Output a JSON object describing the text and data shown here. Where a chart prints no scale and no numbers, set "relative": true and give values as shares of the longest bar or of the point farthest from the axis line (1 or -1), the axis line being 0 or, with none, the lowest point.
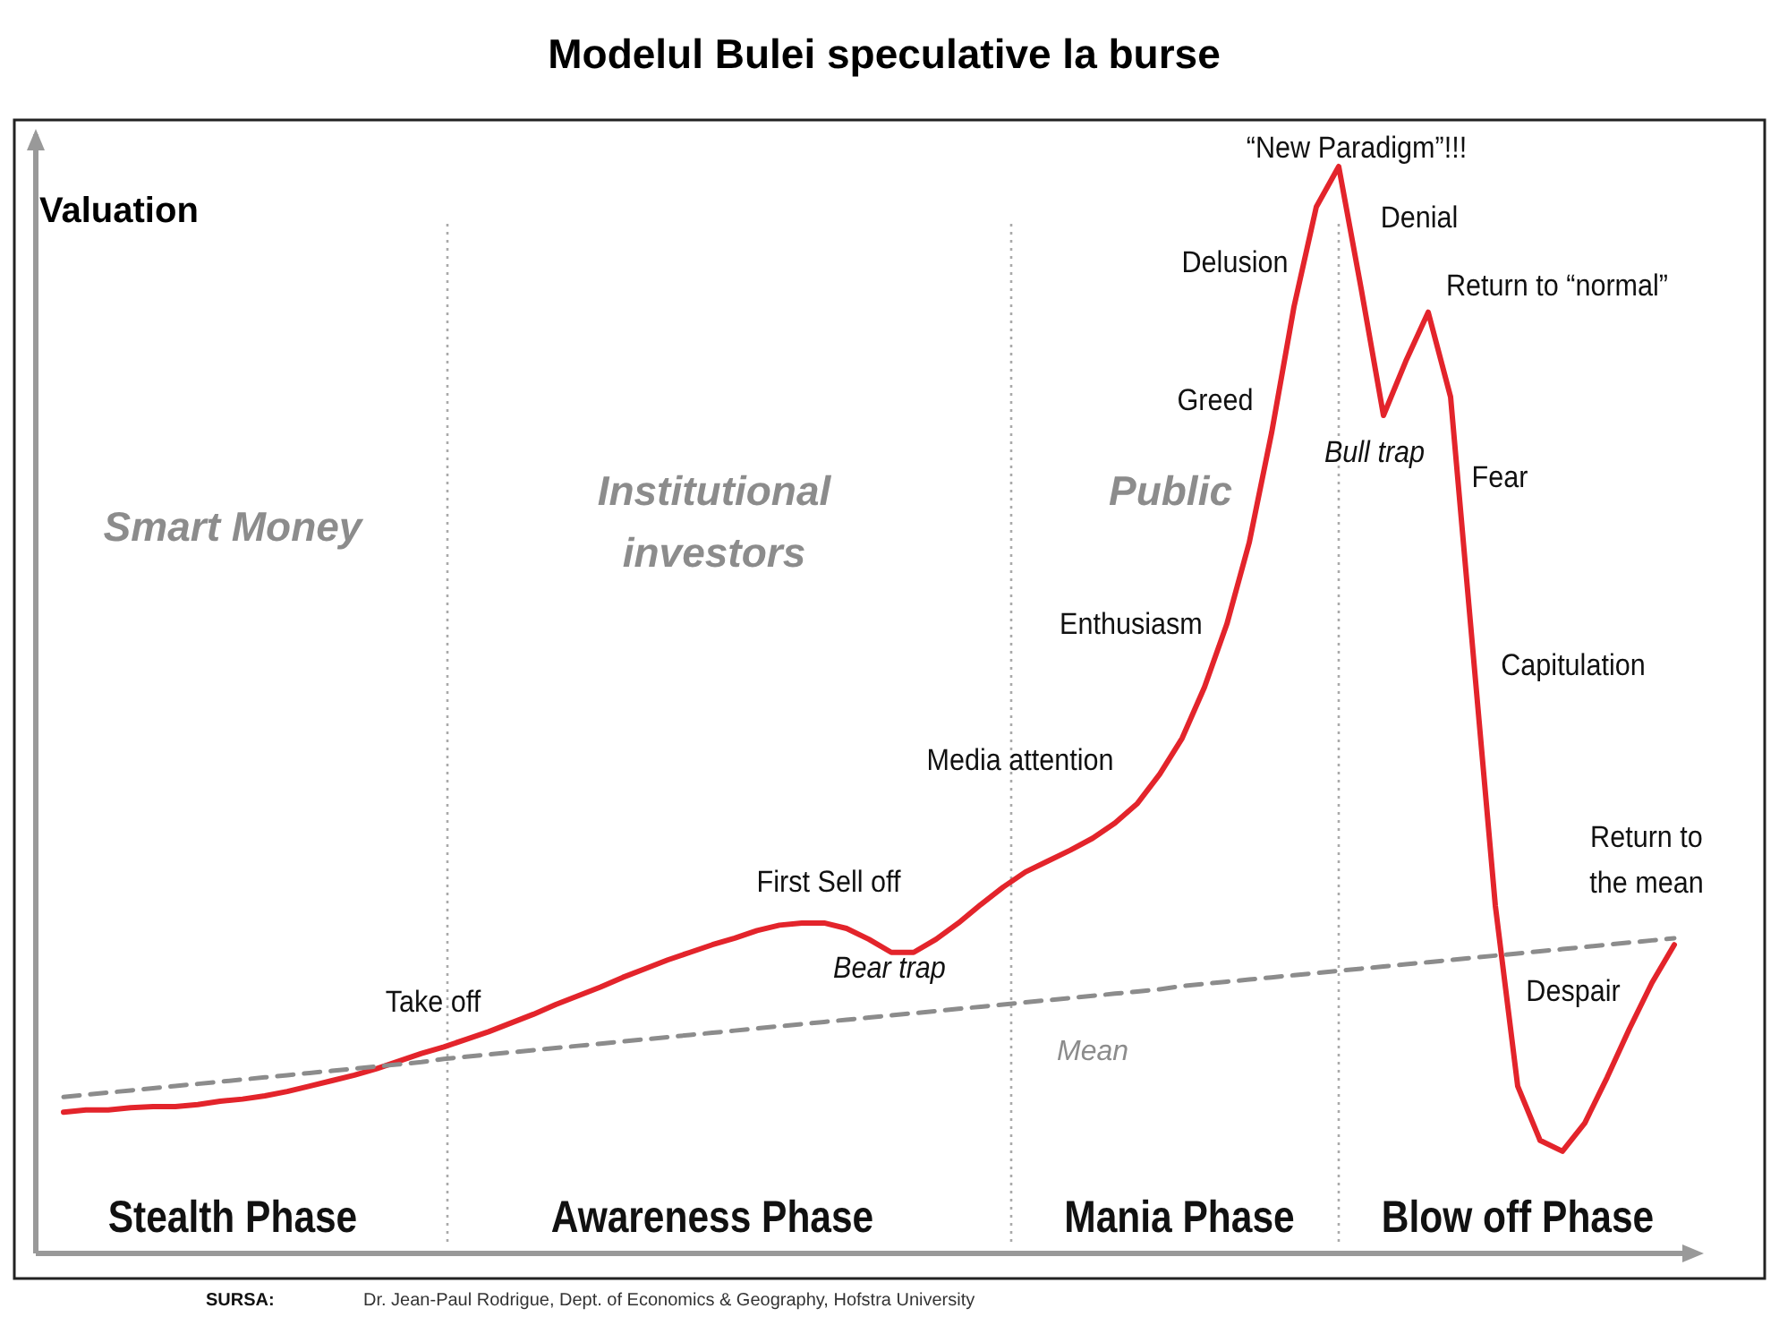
{
  "chart_data": {
    "type": "line",
    "title": "Modelul Bulei speculative la burse",
    "ylabel": "Valuation",
    "relative": true,
    "categories": [
      null,
      null,
      null,
      null,
      null,
      null,
      null,
      null,
      null,
      null,
      null,
      null,
      null,
      null,
      null,
      null,
      null,
      null,
      null,
      null,
      null,
      null,
      null,
      null,
      null,
      null,
      null,
      null,
      null,
      null,
      null,
      null,
      null,
      null,
      null,
      null,
      null,
      null,
      null,
      null,
      null,
      null,
      null,
      null,
      null,
      null,
      null,
      null,
      null,
      null,
      null,
      null,
      null,
      null,
      null,
      null,
      null,
      null,
      null,
      null,
      null,
      null,
      null,
      null,
      null,
      null,
      null,
      null,
      null,
      null,
      null,
      null,
      null
    ],
    "series": [
      {
        "color": "#e3242b",
        "line_style": "solid",
        "values": [
          0.13,
          0.132,
          0.132,
          0.134,
          0.135,
          0.135,
          0.137,
          0.14,
          0.142,
          0.145,
          0.149,
          0.154,
          0.159,
          0.164,
          0.17,
          0.177,
          0.184,
          0.19,
          0.197,
          0.204,
          0.212,
          0.22,
          0.229,
          0.237,
          0.245,
          0.254,
          0.262,
          0.27,
          0.277,
          0.284,
          0.29,
          0.297,
          0.302,
          0.304,
          0.304,
          0.299,
          0.289,
          0.277,
          0.277,
          0.289,
          0.304,
          0.321,
          0.337,
          0.351,
          0.361,
          0.371,
          0.382,
          0.396,
          0.414,
          0.441,
          0.474,
          0.521,
          0.579,
          0.654,
          0.755,
          0.871,
          0.963,
          1,
          0.888,
          0.771,
          0.821,
          0.866,
          0.788,
          0.554,
          0.32,
          0.154,
          0.104,
          0.094,
          0.12,
          0.162,
          0.207,
          0.249,
          0.284
        ]
      },
      {
        "name": "Mean",
        "color": "#8c8c8c",
        "line_style": "dashed",
        "values": [
          0.144,
          0.146,
          0.148,
          0.15,
          0.152,
          0.154,
          0.156,
          0.158,
          0.16,
          0.162,
          0.164,
          0.166,
          0.168,
          0.17,
          0.172,
          0.174,
          0.176,
          0.179,
          0.181,
          0.183,
          0.185,
          0.187,
          0.189,
          0.191,
          0.193,
          0.195,
          0.197,
          0.199,
          0.201,
          0.203,
          0.205,
          0.207,
          0.209,
          0.211,
          0.213,
          0.215,
          0.217,
          0.219,
          0.221,
          0.223,
          0.225,
          0.227,
          0.229,
          0.231,
          0.233,
          0.235,
          0.237,
          0.239,
          0.241,
          0.243,
          0.246,
          0.248,
          0.25,
          0.252,
          0.254,
          0.256,
          0.258,
          0.26,
          0.262,
          0.264,
          0.266,
          0.268,
          0.27,
          0.272,
          0.274,
          0.276,
          0.278,
          0.28,
          0.282,
          0.284,
          0.286,
          0.288,
          0.29
        ]
      }
    ],
    "annotations": [
      "Stealth Phase",
      "Awareness Phase",
      "Mania Phase",
      "Blow off Phase",
      "Smart Money",
      "Institutional\ninvestors",
      "Public",
      "Take off",
      "First Sell off",
      "Bear trap",
      "Media attention",
      "Enthusiasm",
      "Greed",
      "Delusion",
      "“New Paradigm”!!!",
      "Denial",
      "Bull trap",
      "Return to “normal”",
      "Fear",
      "Capitulation",
      "Despair",
      "Return to\nthe mean",
      "SURSA:",
      "Dr. Jean-Paul Rodrigue, Dept. of Economics & Geography, Hofstra University"
    ]
  }
}
